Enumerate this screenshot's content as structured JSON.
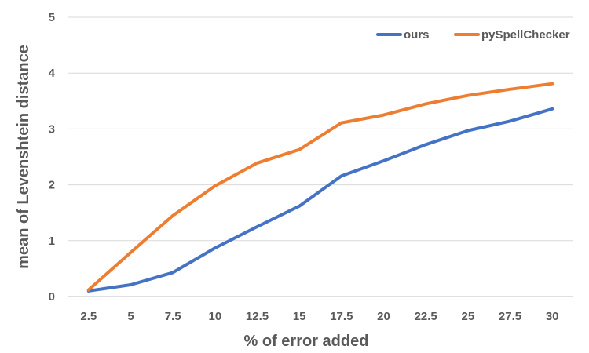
{
  "chart_data": {
    "type": "line",
    "categories": [
      "2.5",
      "5",
      "7.5",
      "10",
      "12.5",
      "15",
      "17.5",
      "20",
      "22.5",
      "25",
      "27.5",
      "30"
    ],
    "series": [
      {
        "name": "ours",
        "color": "#4472c4",
        "values": [
          0.1,
          0.21,
          0.43,
          0.87,
          1.25,
          1.62,
          2.16,
          2.43,
          2.72,
          2.97,
          3.14,
          3.36
        ]
      },
      {
        "name": "pySpellChecker",
        "color": "#ed7d31",
        "values": [
          0.12,
          0.79,
          1.45,
          1.98,
          2.39,
          2.63,
          3.11,
          3.25,
          3.45,
          3.6,
          3.71,
          3.81
        ]
      }
    ],
    "xlabel": "% of error added",
    "ylabel": "mean of Levenshtein distance",
    "ylim": [
      0,
      5
    ],
    "yticks": [
      "0",
      "1",
      "2",
      "3",
      "4",
      "5"
    ],
    "grid": true,
    "legend_position": "top-right"
  }
}
